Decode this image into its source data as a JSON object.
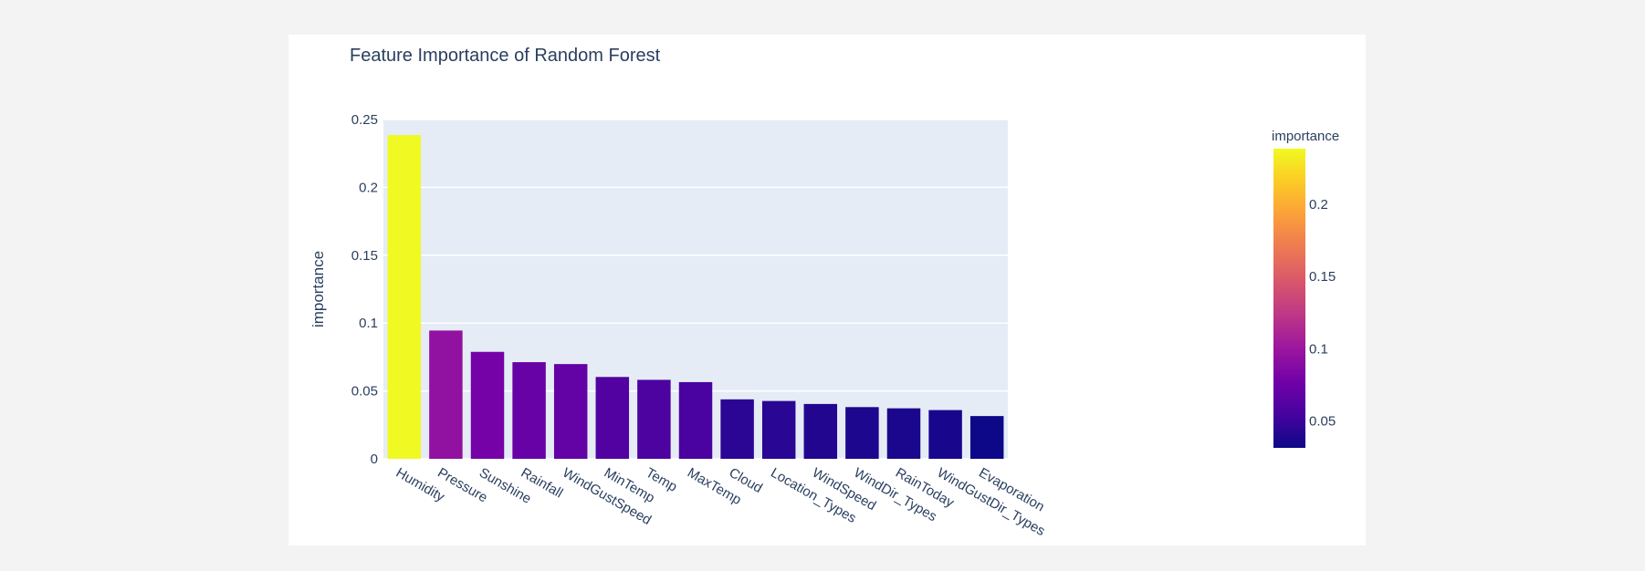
{
  "chart_data": {
    "type": "bar",
    "title": "Feature Importance of Random Forest",
    "xlabel": "",
    "ylabel": "importance",
    "ylim": [
      0,
      0.25
    ],
    "yticks": [
      0,
      0.05,
      0.1,
      0.15,
      0.2,
      0.25
    ],
    "ytick_labels": [
      "0",
      "0.05",
      "0.1",
      "0.15",
      "0.2",
      "0.25"
    ],
    "grid": true,
    "categories": [
      "Humidity",
      "Pressure",
      "Sunshine",
      "Rainfall",
      "WindGustSpeed",
      "MinTemp",
      "Temp",
      "MaxTemp",
      "Cloud",
      "Location_Types",
      "WindSpeed",
      "WindDir_Types",
      "RainToday",
      "WindGustDir_Types",
      "Evaporation"
    ],
    "values": [
      0.2385,
      0.0945,
      0.0788,
      0.0712,
      0.0698,
      0.0603,
      0.0582,
      0.0565,
      0.0438,
      0.0426,
      0.0404,
      0.0381,
      0.0372,
      0.0359,
      0.0315
    ],
    "colorbar": {
      "title": "importance",
      "range": [
        0.0315,
        0.2385
      ],
      "ticks": [
        0.05,
        0.1,
        0.15,
        0.2
      ],
      "tick_labels": [
        "0.05",
        "0.1",
        "0.15",
        "0.2"
      ],
      "colorscale": [
        "#0d0887",
        "#46039f",
        "#7201a8",
        "#9c179e",
        "#bd3786",
        "#d8576b",
        "#ed7953",
        "#fb9f3a",
        "#fdca26",
        "#f0f921"
      ]
    },
    "plot_background": "#e5ecf6",
    "text_color": "#2a3f5f"
  }
}
